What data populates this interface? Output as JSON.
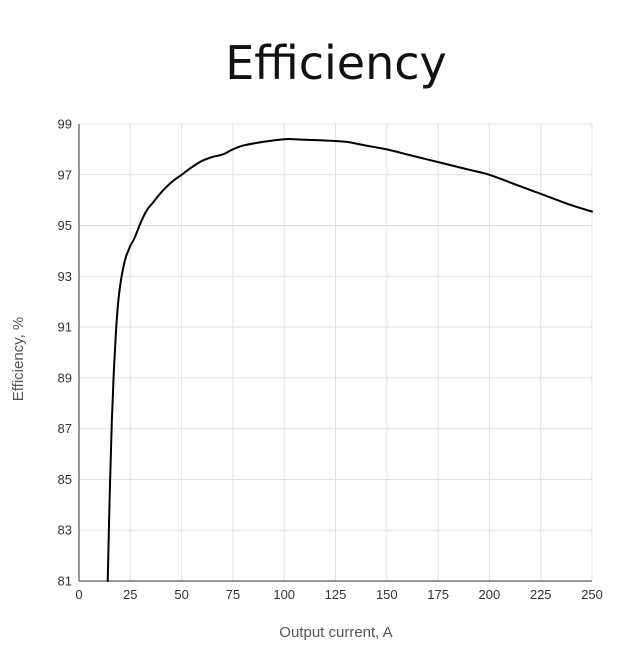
{
  "chart_data": {
    "type": "line",
    "title": "Efficiency",
    "xlabel": "Output current, A",
    "ylabel": "Efficiency, %",
    "xlim": [
      0,
      250
    ],
    "ylim": [
      81,
      99
    ],
    "x_ticks": [
      0,
      25,
      50,
      75,
      100,
      125,
      150,
      175,
      200,
      225,
      250
    ],
    "y_ticks": [
      81,
      83,
      85,
      87,
      89,
      91,
      93,
      95,
      97,
      99
    ],
    "grid": true,
    "legend": "none",
    "series": [
      {
        "color": "#000000",
        "x": [
          14,
          15,
          16,
          17,
          18,
          19,
          20,
          21,
          22,
          23,
          24,
          25,
          27,
          30,
          33,
          36,
          40,
          45,
          50,
          55,
          60,
          65,
          70,
          75,
          80,
          90,
          100,
          105,
          110,
          120,
          130,
          140,
          150,
          160,
          170,
          180,
          190,
          200,
          210,
          220,
          230,
          240,
          250
        ],
        "y": [
          81.0,
          84.5,
          87.3,
          89.3,
          90.8,
          91.9,
          92.6,
          93.1,
          93.5,
          93.8,
          94.0,
          94.2,
          94.5,
          95.1,
          95.6,
          95.9,
          96.3,
          96.7,
          97.0,
          97.3,
          97.55,
          97.7,
          97.8,
          98.0,
          98.15,
          98.3,
          98.4,
          98.4,
          98.38,
          98.35,
          98.3,
          98.15,
          98.0,
          97.8,
          97.6,
          97.4,
          97.2,
          97.0,
          96.7,
          96.4,
          96.1,
          95.8,
          95.55
        ]
      }
    ]
  }
}
